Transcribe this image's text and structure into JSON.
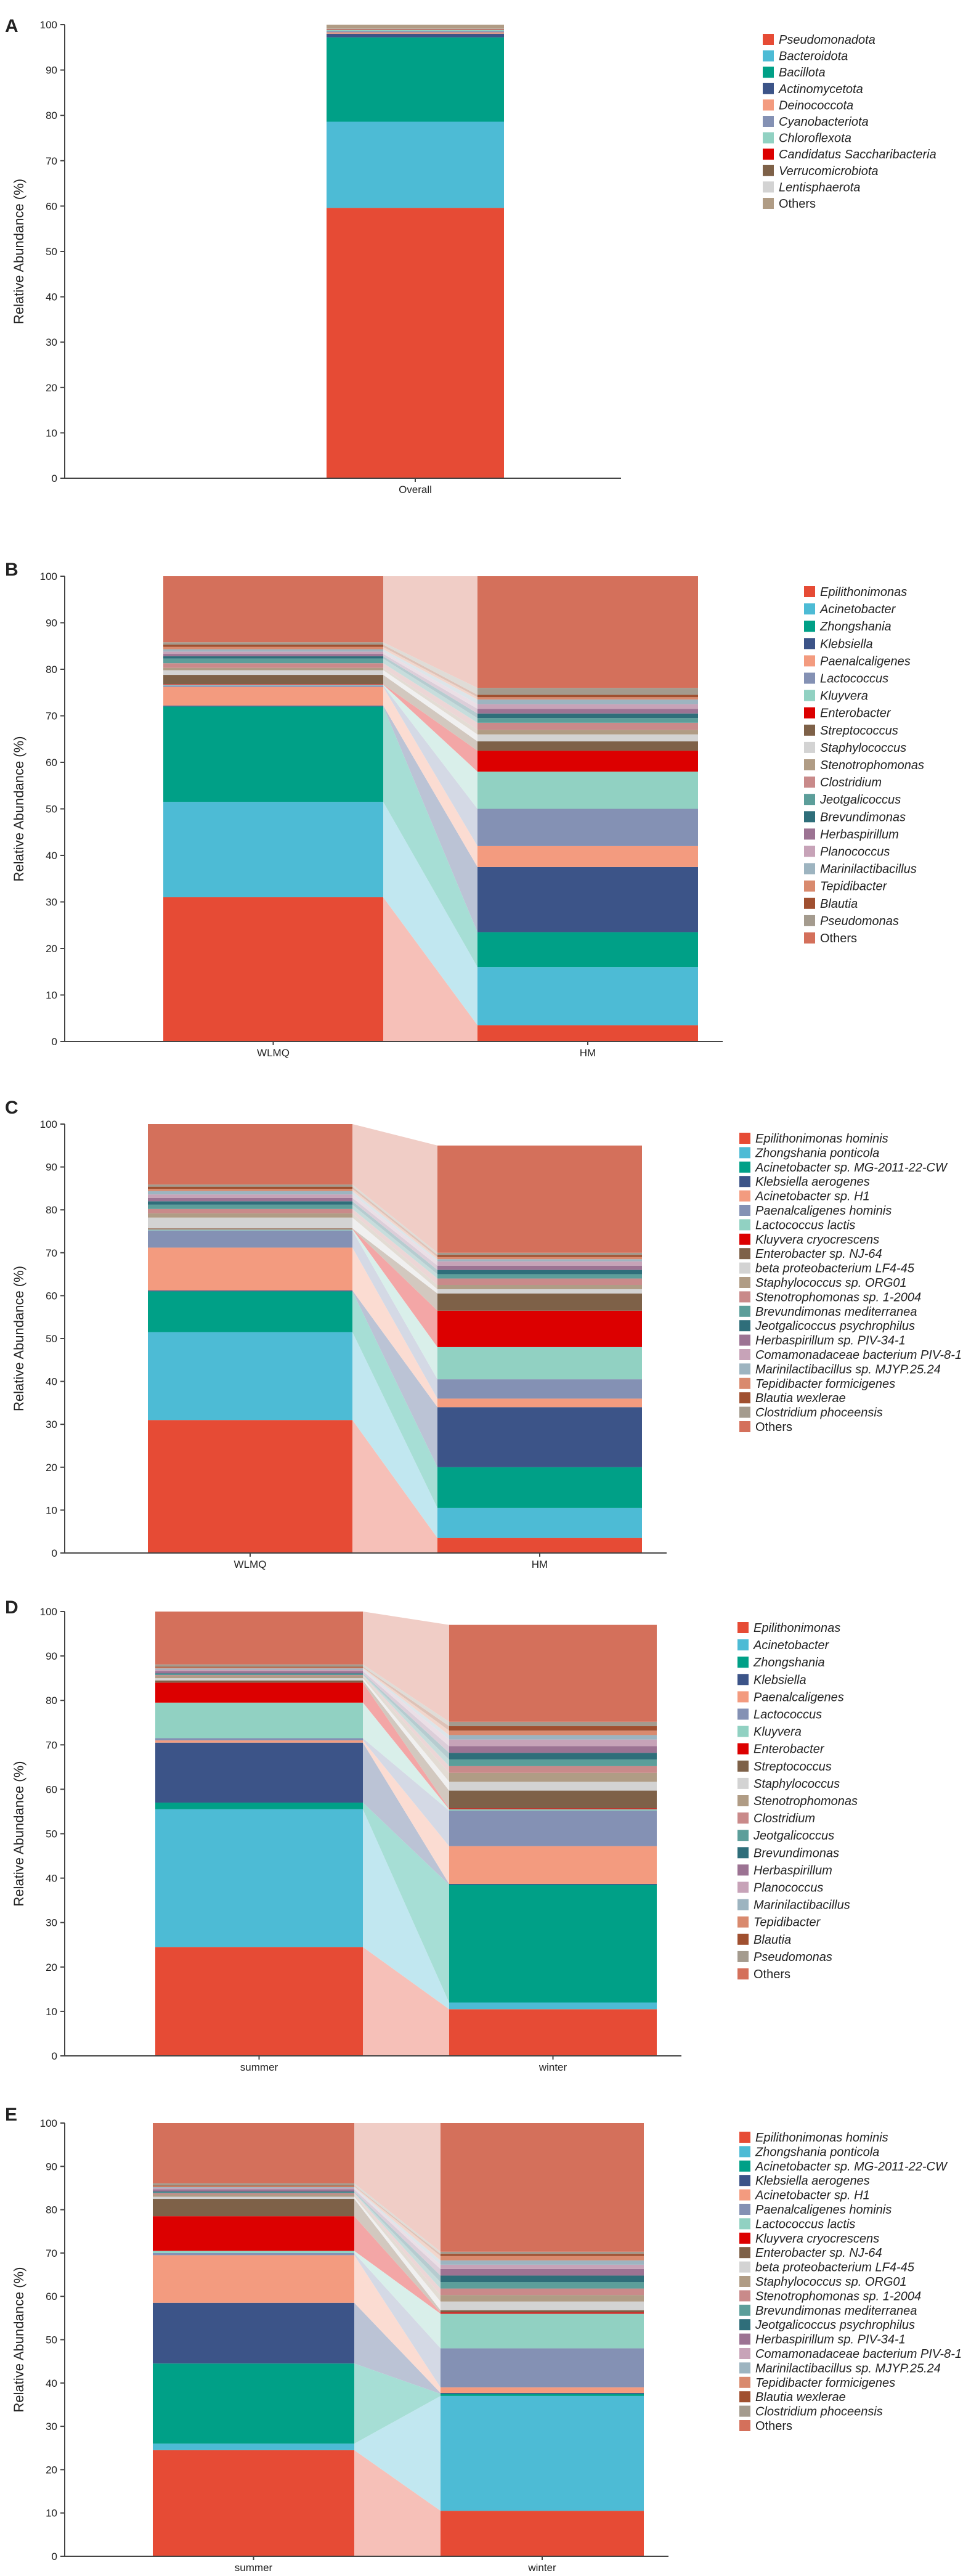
{
  "colors": [
    "#e64b35",
    "#4dbbd5",
    "#00a087",
    "#3c5488",
    "#f39b7f",
    "#8491b4",
    "#91d1c2",
    "#dc0000",
    "#7e6148",
    "#d3d3d3",
    "#b09c85",
    "#c98a8a",
    "#5c9e9a",
    "#2f6e7a",
    "#9c7393",
    "#c7a3b8",
    "#9db4c0",
    "#d98a6e",
    "#a05030",
    "#a49b8e",
    "#e8907d",
    "#d4705b"
  ],
  "colors_overall": [
    "#e64b35",
    "#4dbbd5",
    "#00a087",
    "#3c5488",
    "#f39b7f",
    "#8491b4",
    "#91d1c2",
    "#dc0000",
    "#7e6148",
    "#d3d3d3",
    "#b09c85"
  ],
  "chart_data": [
    {
      "panel": "A",
      "type": "bar",
      "stacked": true,
      "ylabel": "Relative Abundance (%)",
      "ylim": [
        0,
        100
      ],
      "yticks": [
        "0",
        "10",
        "20",
        "30",
        "40",
        "50",
        "60",
        "70",
        "80",
        "90",
        "100"
      ],
      "categories": [
        "Overall"
      ],
      "series": [
        {
          "name": "Pseudomonadota",
          "values": [
            59.6
          ]
        },
        {
          "name": "Bacteroidota",
          "values": [
            19.0
          ]
        },
        {
          "name": "Bacillota",
          "values": [
            18.6
          ]
        },
        {
          "name": "Actinomycetota",
          "values": [
            0.8
          ]
        },
        {
          "name": "Deinococcota",
          "values": [
            0.3
          ]
        },
        {
          "name": "Cyanobacteriota",
          "values": [
            0.3
          ]
        },
        {
          "name": "Chloroflexota",
          "values": [
            0.2
          ]
        },
        {
          "name": "Candidatus Saccharibacteria",
          "values": [
            0.1
          ]
        },
        {
          "name": "Verrucomicrobiota",
          "values": [
            0.1
          ]
        },
        {
          "name": "Lentisphaerota",
          "values": [
            0.1
          ]
        },
        {
          "name": "Others",
          "values": [
            0.9
          ]
        }
      ]
    },
    {
      "panel": "B",
      "type": "bar",
      "stacked": true,
      "ylabel": "Relative Abundance (%)",
      "ylim": [
        0,
        100
      ],
      "yticks": [
        "0",
        "10",
        "20",
        "30",
        "40",
        "50",
        "60",
        "70",
        "80",
        "90",
        "100"
      ],
      "categories": [
        "WLMQ",
        "HM"
      ],
      "series": [
        {
          "name": "Epilithonimonas",
          "values": [
            31.0,
            3.5
          ]
        },
        {
          "name": "Acinetobacter",
          "values": [
            20.5,
            12.5
          ]
        },
        {
          "name": "Zhongshania",
          "values": [
            20.5,
            7.5
          ]
        },
        {
          "name": "Klebsiella",
          "values": [
            0.2,
            14.0
          ]
        },
        {
          "name": "Paenalcaligenes",
          "values": [
            4.0,
            4.5
          ]
        },
        {
          "name": "Lactococcus",
          "values": [
            0.3,
            8.0
          ]
        },
        {
          "name": "Kluyvera",
          "values": [
            0.2,
            8.0
          ]
        },
        {
          "name": "Enterobacter",
          "values": [
            0.1,
            4.5
          ]
        },
        {
          "name": "Streptococcus",
          "values": [
            2.0,
            2.0
          ]
        },
        {
          "name": "Staphylococcus",
          "values": [
            1.0,
            1.5
          ]
        },
        {
          "name": "Stenotrophomonas",
          "values": [
            0.5,
            1.0
          ]
        },
        {
          "name": "Clostridium",
          "values": [
            1.0,
            1.5
          ]
        },
        {
          "name": "Jeotgalicoccus",
          "values": [
            1.0,
            1.0
          ]
        },
        {
          "name": "Brevundimonas",
          "values": [
            0.5,
            1.0
          ]
        },
        {
          "name": "Herbaspirillum",
          "values": [
            0.5,
            1.0
          ]
        },
        {
          "name": "Planococcus",
          "values": [
            0.5,
            1.0
          ]
        },
        {
          "name": "Marinilactibacillus",
          "values": [
            0.5,
            1.0
          ]
        },
        {
          "name": "Tepidibacter",
          "values": [
            0.5,
            0.5
          ]
        },
        {
          "name": "Blautia",
          "values": [
            0.5,
            0.5
          ]
        },
        {
          "name": "Pseudomonas",
          "values": [
            0.5,
            1.5
          ]
        },
        {
          "name": "Others",
          "values": [
            14.7,
            24.0
          ]
        }
      ]
    },
    {
      "panel": "C",
      "type": "bar",
      "stacked": true,
      "ylabel": "Relative Abundance (%)",
      "ylim": [
        0,
        100
      ],
      "yticks": [
        "0",
        "10",
        "20",
        "30",
        "40",
        "50",
        "60",
        "70",
        "80",
        "90",
        "100"
      ],
      "categories": [
        "WLMQ",
        "HM"
      ],
      "series": [
        {
          "name": "Epilithonimonas hominis",
          "values": [
            31.0,
            3.5
          ]
        },
        {
          "name": "Zhongshania ponticola",
          "values": [
            20.5,
            7.0
          ]
        },
        {
          "name": "Acinetobacter sp. MG-2011-22-CW",
          "values": [
            9.5,
            9.5
          ]
        },
        {
          "name": "Klebsiella aerogenes",
          "values": [
            0.2,
            14.0
          ]
        },
        {
          "name": "Acinetobacter sp. H1",
          "values": [
            10.0,
            2.0
          ]
        },
        {
          "name": "Paenalcaligenes hominis",
          "values": [
            4.0,
            4.5
          ]
        },
        {
          "name": "Lactococcus lactis",
          "values": [
            0.3,
            7.5
          ]
        },
        {
          "name": "Kluyvera cryocrescens",
          "values": [
            0.1,
            8.5
          ]
        },
        {
          "name": "Enterobacter sp. NJ-64",
          "values": [
            0.1,
            4.0
          ]
        },
        {
          "name": "beta proteobacterium LF4-45",
          "values": [
            2.5,
            1.0
          ]
        },
        {
          "name": "Staphylococcus sp. ORG01",
          "values": [
            1.0,
            1.0
          ]
        },
        {
          "name": "Stenotrophomonas sp. 1-2004",
          "values": [
            1.0,
            1.5
          ]
        },
        {
          "name": "Brevundimonas mediterranea",
          "values": [
            1.0,
            1.0
          ]
        },
        {
          "name": "Jeotgalicoccus psychrophilus",
          "values": [
            0.8,
            1.0
          ]
        },
        {
          "name": "Herbaspirillum sp. PIV-34-1",
          "values": [
            0.8,
            1.0
          ]
        },
        {
          "name": "Comamonadaceae bacterium PIV-8-1",
          "values": [
            0.8,
            1.0
          ]
        },
        {
          "name": "Marinilactibacillus sp. MJYP.25.24",
          "values": [
            0.8,
            0.5
          ]
        },
        {
          "name": "Tepidibacter formicigenes",
          "values": [
            0.5,
            0.5
          ]
        },
        {
          "name": "Blautia wexlerae",
          "values": [
            0.5,
            0.5
          ]
        },
        {
          "name": "Clostridium phoceensis",
          "values": [
            0.5,
            0.5
          ]
        },
        {
          "name": "Others",
          "values": [
            14.6,
            25.0
          ]
        }
      ]
    },
    {
      "panel": "D",
      "type": "bar",
      "stacked": true,
      "ylabel": "Relative Abundance (%)",
      "ylim": [
        0,
        100
      ],
      "yticks": [
        "0",
        "10",
        "20",
        "30",
        "40",
        "50",
        "60",
        "70",
        "80",
        "90",
        "100"
      ],
      "categories": [
        "summer",
        "winter"
      ],
      "series": [
        {
          "name": "Epilithonimonas",
          "values": [
            24.5,
            10.5
          ]
        },
        {
          "name": "Acinetobacter",
          "values": [
            31.0,
            1.5
          ]
        },
        {
          "name": "Zhongshania",
          "values": [
            1.5,
            26.5
          ]
        },
        {
          "name": "Klebsiella",
          "values": [
            13.5,
            0.2
          ]
        },
        {
          "name": "Paenalcaligenes",
          "values": [
            0.5,
            8.5
          ]
        },
        {
          "name": "Lactococcus",
          "values": [
            0.5,
            8.0
          ]
        },
        {
          "name": "Kluyvera",
          "values": [
            8.0,
            0.3
          ]
        },
        {
          "name": "Enterobacter",
          "values": [
            4.5,
            0.2
          ]
        },
        {
          "name": "Streptococcus",
          "values": [
            0.5,
            4.0
          ]
        },
        {
          "name": "Staphylococcus",
          "values": [
            0.5,
            2.0
          ]
        },
        {
          "name": "Stenotrophomonas",
          "values": [
            0.5,
            2.0
          ]
        },
        {
          "name": "Clostridium",
          "values": [
            0.2,
            1.5
          ]
        },
        {
          "name": "Jeotgalicoccus",
          "values": [
            0.2,
            1.5
          ]
        },
        {
          "name": "Brevundimonas",
          "values": [
            0.2,
            1.5
          ]
        },
        {
          "name": "Herbaspirillum",
          "values": [
            0.5,
            1.5
          ]
        },
        {
          "name": "Planococcus",
          "values": [
            0.3,
            1.5
          ]
        },
        {
          "name": "Marinilactibacillus",
          "values": [
            0.3,
            1.0
          ]
        },
        {
          "name": "Tepidibacter",
          "values": [
            0.2,
            1.0
          ]
        },
        {
          "name": "Blautia",
          "values": [
            0.2,
            1.0
          ]
        },
        {
          "name": "Pseudomonas",
          "values": [
            0.5,
            1.0
          ]
        },
        {
          "name": "Others",
          "values": [
            12.9,
            21.8
          ]
        }
      ]
    },
    {
      "panel": "E",
      "type": "bar",
      "stacked": true,
      "ylabel": "Relative Abundance (%)",
      "ylim": [
        0,
        100
      ],
      "yticks": [
        "0",
        "10",
        "20",
        "30",
        "40",
        "50",
        "60",
        "70",
        "80",
        "90",
        "100"
      ],
      "categories": [
        "summer",
        "winter"
      ],
      "series": [
        {
          "name": "Epilithonimonas hominis",
          "values": [
            24.5,
            10.5
          ]
        },
        {
          "name": "Zhongshania ponticola",
          "values": [
            1.5,
            26.5
          ]
        },
        {
          "name": "Acinetobacter sp. MG-2011-22-CW",
          "values": [
            18.5,
            0.5
          ]
        },
        {
          "name": "Klebsiella aerogenes",
          "values": [
            14.0,
            0.2
          ]
        },
        {
          "name": "Acinetobacter sp. H1",
          "values": [
            11.0,
            1.3
          ]
        },
        {
          "name": "Paenalcaligenes hominis",
          "values": [
            0.5,
            9.0
          ]
        },
        {
          "name": "Lactococcus lactis",
          "values": [
            0.5,
            8.0
          ]
        },
        {
          "name": "Kluyvera cryocrescens",
          "values": [
            8.0,
            0.3
          ]
        },
        {
          "name": "Enterobacter sp. NJ-64",
          "values": [
            4.0,
            0.5
          ]
        },
        {
          "name": "beta proteobacterium LF4-45",
          "values": [
            0.5,
            2.0
          ]
        },
        {
          "name": "Staphylococcus sp. ORG01",
          "values": [
            0.5,
            1.5
          ]
        },
        {
          "name": "Stenotrophomonas sp. 1-2004",
          "values": [
            0.3,
            1.5
          ]
        },
        {
          "name": "Brevundimonas mediterranea",
          "values": [
            0.2,
            1.5
          ]
        },
        {
          "name": "Jeotgalicoccus psychrophilus",
          "values": [
            0.2,
            1.5
          ]
        },
        {
          "name": "Herbaspirillum sp. PIV-34-1",
          "values": [
            0.5,
            1.5
          ]
        },
        {
          "name": "Comamonadaceae bacterium PIV-8-1",
          "values": [
            0.3,
            1.0
          ]
        },
        {
          "name": "Marinilactibacillus sp. MJYP.25.24",
          "values": [
            0.2,
            1.0
          ]
        },
        {
          "name": "Tepidibacter formicigenes",
          "values": [
            0.2,
            1.0
          ]
        },
        {
          "name": "Blautia wexlerae",
          "values": [
            0.2,
            0.5
          ]
        },
        {
          "name": "Clostridium phoceensis",
          "values": [
            0.5,
            0.5
          ]
        },
        {
          "name": "Others",
          "values": [
            13.9,
            29.7
          ]
        }
      ]
    }
  ]
}
